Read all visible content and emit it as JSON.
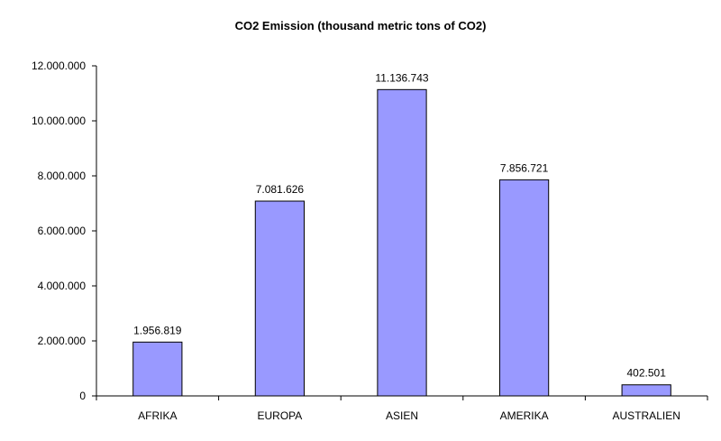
{
  "chart_data": {
    "type": "bar",
    "title": "CO2 Emission (thousand metric tons of CO2)",
    "xlabel": "",
    "ylabel": "",
    "categories": [
      "AFRIKA",
      "EUROPA",
      "ASIEN",
      "AMERIKA",
      "AUSTRALIEN"
    ],
    "values": [
      1956819,
      7081626,
      11136743,
      7856721,
      402501
    ],
    "data_labels": [
      "1.956.819",
      "7.081.626",
      "11.136.743",
      "7.856.721",
      "402.501"
    ],
    "ylim": [
      0,
      12000000
    ],
    "yticks": [
      0,
      2000000,
      4000000,
      6000000,
      8000000,
      10000000,
      12000000
    ],
    "ytick_labels": [
      "0",
      "2.000.000",
      "4.000.000",
      "6.000.000",
      "8.000.000",
      "10.000.000",
      "12.000.000"
    ],
    "grid": false,
    "legend": "none",
    "bar_color": "#9999ff"
  }
}
